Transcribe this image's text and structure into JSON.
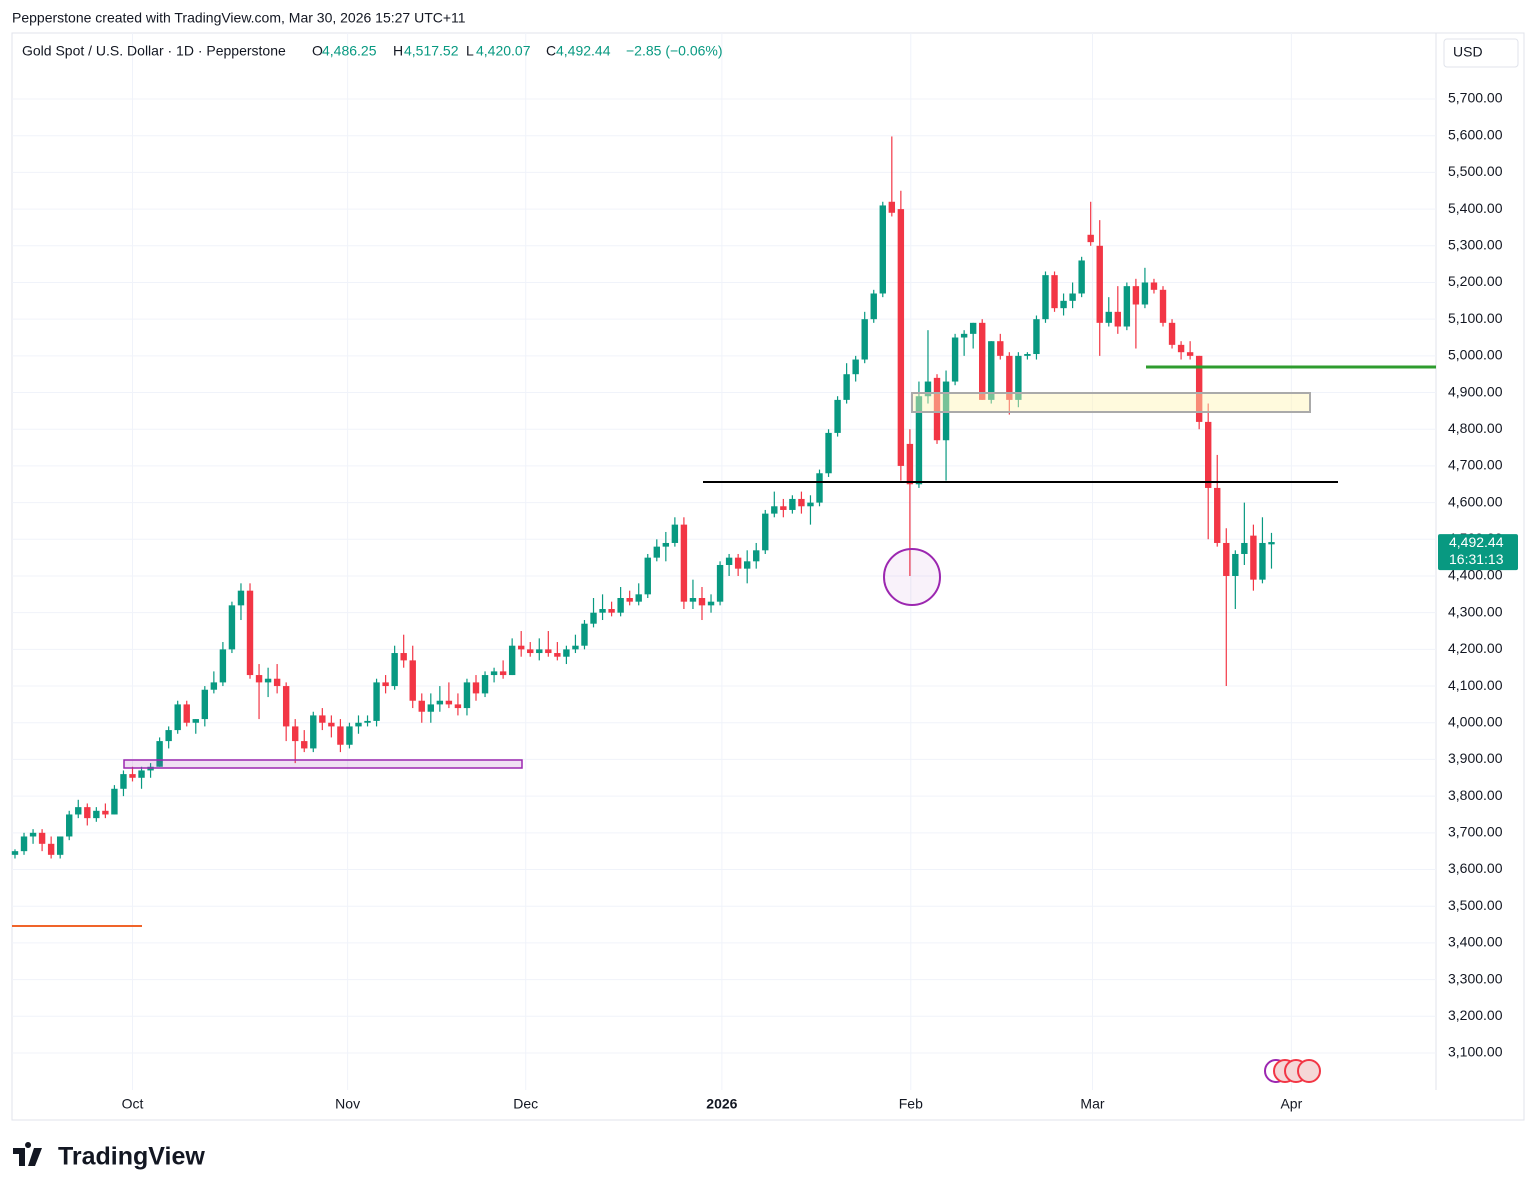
{
  "header": {
    "credit": "Pepperstone created with TradingView.com, Mar 30, 2026 15:27 UTC+11",
    "symbol": "Gold Spot / U.S. Dollar · 1D · Pepperstone",
    "ohlc": [
      {
        "label": "O",
        "value": "4,486.25"
      },
      {
        "label": "H",
        "value": "4,517.52"
      },
      {
        "label": "L",
        "value": "4,420.07"
      },
      {
        "label": "C",
        "value": "4,492.44"
      }
    ],
    "change": "−2.85 (−0.06%)",
    "currency": "USD",
    "last_price": "4,492.44",
    "countdown": "16:31:13",
    "brand": "TradingView"
  },
  "chart_data": {
    "type": "candlestick",
    "up_color": "#089981",
    "down_color": "#f23645",
    "grid": true,
    "open": [
      3640,
      3650,
      3690,
      3700,
      3670,
      3640,
      3690,
      3750,
      3770,
      3740,
      3760,
      3750,
      3820,
      3860,
      3850,
      3870,
      3880,
      3950,
      3980,
      4050,
      4000,
      4010,
      4090,
      4110,
      4200,
      4320,
      4360,
      4130,
      4110,
      4120,
      4100,
      3990,
      3950,
      3930,
      4020,
      4000,
      3990,
      3940,
      3990,
      4000,
      4005,
      4110,
      4100,
      4190,
      4170,
      4060,
      4030,
      4050,
      4060,
      4050,
      4040,
      4110,
      4080,
      4130,
      4140,
      4130,
      4210,
      4200,
      4190,
      4200,
      4190,
      4180,
      4200,
      4210,
      4270,
      4300,
      4310,
      4300,
      4340,
      4330,
      4350,
      4450,
      4480,
      4490,
      4540,
      4330,
      4340,
      4320,
      4330,
      4430,
      4450,
      4420,
      4440,
      4470,
      4570,
      4590,
      4580,
      4610,
      4590,
      4600,
      4680,
      4790,
      4880,
      4950,
      4990,
      5100,
      5170,
      5420,
      5400,
      4760,
      4650,
      4890,
      4940,
      4770,
      4930,
      5050,
      5060,
      5090,
      4880,
      5040,
      5000,
      4880,
      5000,
      5005,
      5100,
      5220,
      5130,
      5150,
      5170,
      5330,
      5300,
      5090,
      5120,
      5080,
      5190,
      5140,
      5200,
      5180,
      5090,
      5030,
      5010,
      5000,
      4820,
      4640,
      4490,
      4400,
      4460,
      4510,
      4390,
      4486.25
    ],
    "high": [
      3655,
      3700,
      3710,
      3710,
      3690,
      3690,
      3760,
      3790,
      3780,
      3770,
      3780,
      3830,
      3870,
      3880,
      3880,
      3890,
      3960,
      3990,
      4060,
      4060,
      4010,
      4100,
      4140,
      4220,
      4330,
      4380,
      4380,
      4160,
      4150,
      4160,
      4110,
      4010,
      3980,
      4030,
      4040,
      4020,
      4010,
      4000,
      4020,
      4020,
      4120,
      4130,
      4210,
      4240,
      4210,
      4080,
      4080,
      4100,
      4110,
      4080,
      4120,
      4130,
      4140,
      4150,
      4170,
      4230,
      4250,
      4220,
      4230,
      4250,
      4220,
      4210,
      4240,
      4280,
      4340,
      4350,
      4330,
      4370,
      4360,
      4380,
      4460,
      4500,
      4520,
      4560,
      4560,
      4390,
      4370,
      4350,
      4440,
      4460,
      4460,
      4470,
      4490,
      4580,
      4630,
      4610,
      4620,
      4630,
      4620,
      4690,
      4800,
      4890,
      4980,
      5000,
      5120,
      5180,
      5420,
      5598,
      5450,
      4800,
      4930,
      5070,
      4950,
      4960,
      5060,
      5070,
      5090,
      5100,
      5040,
      5060,
      5010,
      5010,
      5010,
      5110,
      5230,
      5230,
      5170,
      5200,
      5270,
      5420,
      5370,
      5160,
      5190,
      5200,
      5210,
      5240,
      5210,
      5190,
      5100,
      5040,
      5040,
      5000,
      4870,
      4730,
      4530,
      4470,
      4600,
      4540,
      4560,
      4517.52
    ],
    "low": [
      3630,
      3640,
      3670,
      3650,
      3630,
      3630,
      3680,
      3740,
      3720,
      3730,
      3740,
      3750,
      3800,
      3840,
      3820,
      3850,
      3880,
      3930,
      3970,
      3990,
      3970,
      3990,
      4080,
      4100,
      4190,
      4280,
      4120,
      4010,
      4070,
      4080,
      3950,
      3890,
      3920,
      3920,
      3980,
      3960,
      3920,
      3930,
      3970,
      3990,
      3990,
      4080,
      4090,
      4150,
      4040,
      4000,
      4000,
      4030,
      4040,
      4020,
      4020,
      4060,
      4070,
      4110,
      4120,
      4130,
      4180,
      4180,
      4170,
      4180,
      4170,
      4160,
      4190,
      4200,
      4260,
      4280,
      4290,
      4290,
      4320,
      4320,
      4340,
      4440,
      4440,
      4480,
      4310,
      4310,
      4280,
      4300,
      4320,
      4400,
      4400,
      4380,
      4420,
      4460,
      4560,
      4560,
      4570,
      4570,
      4540,
      4590,
      4670,
      4780,
      4870,
      4930,
      4980,
      5090,
      5160,
      5380,
      4660,
      4400,
      4640,
      4870,
      4760,
      4660,
      4920,
      5000,
      5020,
      4880,
      4870,
      4990,
      4840,
      4860,
      4990,
      4990,
      5090,
      5120,
      5110,
      5130,
      5160,
      5300,
      5000,
      5080,
      5060,
      5070,
      5020,
      5130,
      5170,
      5080,
      5020,
      4990,
      4990,
      4800,
      4500,
      4480,
      4100,
      4310,
      4430,
      4360,
      4380,
      4420.07
    ],
    "close": [
      3650,
      3690,
      3700,
      3670,
      3640,
      3690,
      3750,
      3770,
      3740,
      3760,
      3750,
      3820,
      3860,
      3850,
      3870,
      3880,
      3950,
      3980,
      4050,
      4000,
      4010,
      4090,
      4110,
      4200,
      4320,
      4360,
      4130,
      4110,
      4120,
      4100,
      3990,
      3950,
      3930,
      4020,
      4000,
      3990,
      3940,
      3990,
      4000,
      4005,
      4110,
      4100,
      4190,
      4170,
      4060,
      4030,
      4050,
      4060,
      4050,
      4040,
      4110,
      4080,
      4130,
      4140,
      4130,
      4210,
      4200,
      4190,
      4200,
      4190,
      4180,
      4200,
      4210,
      4270,
      4300,
      4310,
      4300,
      4340,
      4330,
      4350,
      4450,
      4480,
      4490,
      4540,
      4330,
      4340,
      4320,
      4330,
      4430,
      4450,
      4420,
      4440,
      4470,
      4570,
      4590,
      4580,
      4610,
      4590,
      4600,
      4680,
      4790,
      4880,
      4950,
      4990,
      5100,
      5170,
      5410,
      5390,
      4700,
      4650,
      4890,
      4930,
      4770,
      4930,
      5050,
      5060,
      5090,
      4880,
      5040,
      5000,
      4880,
      5000,
      5005,
      5100,
      5220,
      5130,
      5150,
      5170,
      5260,
      5310,
      5090,
      5120,
      5080,
      5190,
      5140,
      5200,
      5180,
      5090,
      5030,
      5010,
      5000,
      4820,
      4640,
      4490,
      4400,
      4460,
      4490,
      4390,
      4490,
      4492.44
    ],
    "xlim": [
      -0.33,
      157.2
    ],
    "xticks": [
      {
        "value": 13,
        "label": "Oct"
      },
      {
        "value": 36.8,
        "label": "Nov"
      },
      {
        "value": 56.5,
        "label": "Dec"
      },
      {
        "value": 78.2,
        "label": "2026"
      },
      {
        "value": 99.1,
        "label": "Feb"
      },
      {
        "value": 119.2,
        "label": "Mar"
      },
      {
        "value": 141.2,
        "label": "Apr"
      }
    ],
    "ylim": [
      2999,
      5880
    ],
    "yticks": [
      {
        "value": 3100,
        "label": "3,100.00"
      },
      {
        "value": 3200,
        "label": "3,200.00"
      },
      {
        "value": 3300,
        "label": "3,300.00"
      },
      {
        "value": 3400,
        "label": "3,400.00"
      },
      {
        "value": 3500,
        "label": "3,500.00"
      },
      {
        "value": 3600,
        "label": "3,600.00"
      },
      {
        "value": 3700,
        "label": "3,700.00"
      },
      {
        "value": 3800,
        "label": "3,800.00"
      },
      {
        "value": 3900,
        "label": "3,900.00"
      },
      {
        "value": 4000,
        "label": "4,000.00"
      },
      {
        "value": 4100,
        "label": "4,100.00"
      },
      {
        "value": 4200,
        "label": "4,200.00"
      },
      {
        "value": 4300,
        "label": "4,300.00"
      },
      {
        "value": 4400,
        "label": "4,400.00"
      },
      {
        "value": 4500,
        "label": "4,500.00"
      },
      {
        "value": 4600,
        "label": "4,600.00"
      },
      {
        "value": 4700,
        "label": "4,700.00"
      },
      {
        "value": 4800,
        "label": "4,800.00"
      },
      {
        "value": 4900,
        "label": "4,900.00"
      },
      {
        "value": 5000,
        "label": "5,000.00"
      },
      {
        "value": 5100,
        "label": "5,100.00"
      },
      {
        "value": 5200,
        "label": "5,200.00"
      },
      {
        "value": 5300,
        "label": "5,300.00"
      },
      {
        "value": 5400,
        "label": "5,400.00"
      },
      {
        "value": 5500,
        "label": "5,500.00"
      },
      {
        "value": 5600,
        "label": "5,600.00"
      },
      {
        "value": 5700,
        "label": "5,700.00"
      }
    ]
  }
}
